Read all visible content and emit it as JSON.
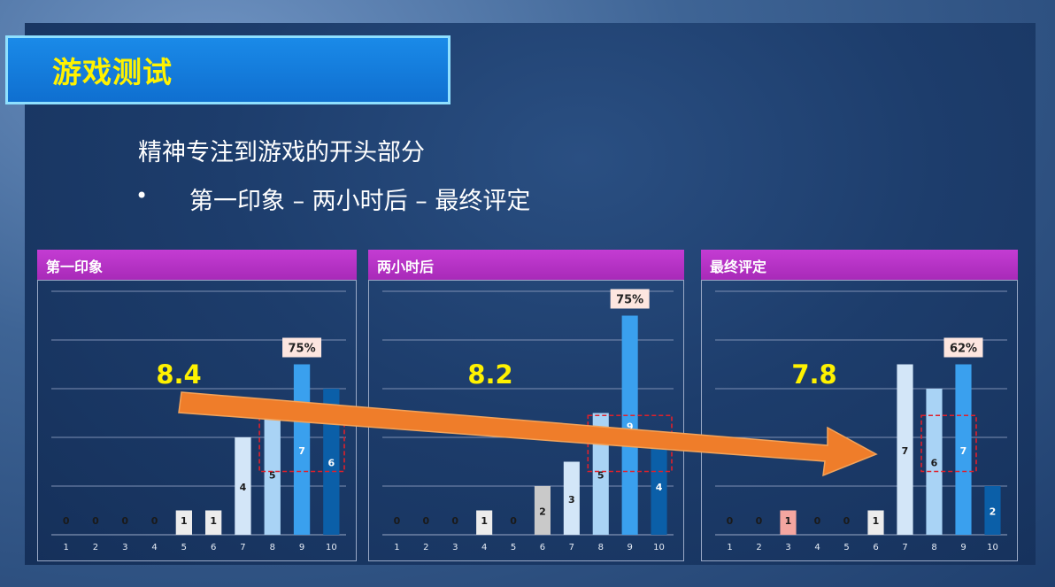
{
  "slide": {
    "title": "游戏测试",
    "subtitle": "精神专注到游戏的开头部分",
    "bullet_symbol": "•",
    "bullet": "第一印象 – 两小时后 – 最终评定"
  },
  "colors": {
    "accent_blue": "#1a8ae8",
    "title_yellow": "#fff200",
    "panel_header": "#b232c2",
    "avg_yellow": "#fff200",
    "arrow_orange": "#ef7d2a",
    "highlight_red": "#e0202a"
  },
  "chart_data": [
    {
      "type": "bar",
      "title": "第一印象",
      "categories": [
        "1",
        "2",
        "3",
        "4",
        "5",
        "6",
        "7",
        "8",
        "9",
        "10"
      ],
      "values": [
        0,
        0,
        0,
        0,
        1,
        1,
        4,
        5,
        7,
        6
      ],
      "ylim": [
        0,
        10
      ],
      "grid": true,
      "average_label": "8.4",
      "percent_label": "75%",
      "highlight_categories": [
        "8",
        "9",
        "10"
      ],
      "percent_anchor": "9"
    },
    {
      "type": "bar",
      "title": "两小时后",
      "categories": [
        "1",
        "2",
        "3",
        "4",
        "5",
        "6",
        "7",
        "8",
        "9",
        "10"
      ],
      "values": [
        0,
        0,
        0,
        1,
        0,
        2,
        3,
        5,
        9,
        4
      ],
      "ylim": [
        0,
        10
      ],
      "grid": true,
      "average_label": "8.2",
      "percent_label": "75%",
      "highlight_categories": [
        "8",
        "9",
        "10"
      ],
      "percent_anchor": "9"
    },
    {
      "type": "bar",
      "title": "最终评定",
      "categories": [
        "1",
        "2",
        "3",
        "4",
        "5",
        "6",
        "7",
        "8",
        "9",
        "10"
      ],
      "values": [
        0,
        0,
        1,
        0,
        0,
        1,
        7,
        6,
        7,
        2
      ],
      "ylim": [
        0,
        10
      ],
      "grid": true,
      "average_label": "7.8",
      "percent_label": "62%",
      "highlight_categories": [
        "8",
        "9"
      ],
      "percent_anchor": "9"
    }
  ]
}
